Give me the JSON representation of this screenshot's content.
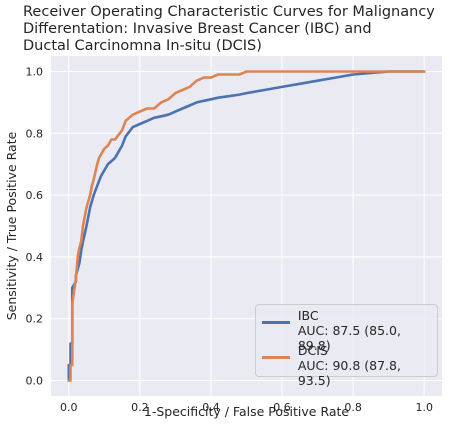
{
  "chart_data": {
    "type": "line",
    "title_lines": [
      "Receiver Operating Characteristic Curves for Malignancy",
      "Differentation: Invasive Breast Cancer (IBC) and",
      "Ductal Carcinomna In-situ (DCIS)"
    ],
    "xlabel": "1-Specificity / False Positive Rate",
    "ylabel": "Sensitivity / True Positive Rate",
    "xlim": [
      -0.05,
      1.05
    ],
    "ylim": [
      -0.05,
      1.05
    ],
    "xticks": [
      "0.0",
      "0.2",
      "0.4",
      "0.6",
      "0.8",
      "1.0"
    ],
    "yticks": [
      "0.0",
      "0.2",
      "0.4",
      "0.6",
      "0.8",
      "1.0"
    ],
    "grid": true,
    "legend_position": "lower-right",
    "series": [
      {
        "name": "IBC",
        "legend_label_line1": "IBC",
        "legend_label_line2": "AUC: 87.5 (85.0, 89.8)",
        "color": "#4c72b0",
        "x": [
          0.0,
          0.0,
          0.005,
          0.005,
          0.01,
          0.01,
          0.02,
          0.02,
          0.03,
          0.035,
          0.04,
          0.05,
          0.06,
          0.07,
          0.08,
          0.09,
          0.1,
          0.11,
          0.12,
          0.13,
          0.14,
          0.15,
          0.16,
          0.18,
          0.2,
          0.22,
          0.24,
          0.26,
          0.28,
          0.3,
          0.32,
          0.34,
          0.36,
          0.38,
          0.4,
          0.42,
          0.45,
          0.48,
          0.5,
          0.55,
          0.6,
          0.65,
          0.7,
          0.75,
          0.8,
          0.85,
          0.9,
          0.95,
          1.0
        ],
        "y": [
          0.0,
          0.05,
          0.05,
          0.12,
          0.12,
          0.3,
          0.32,
          0.34,
          0.38,
          0.42,
          0.45,
          0.5,
          0.56,
          0.6,
          0.63,
          0.66,
          0.68,
          0.7,
          0.71,
          0.72,
          0.74,
          0.76,
          0.79,
          0.82,
          0.83,
          0.84,
          0.85,
          0.855,
          0.86,
          0.87,
          0.88,
          0.89,
          0.9,
          0.905,
          0.91,
          0.915,
          0.92,
          0.925,
          0.93,
          0.94,
          0.95,
          0.96,
          0.97,
          0.98,
          0.99,
          0.995,
          1.0,
          1.0,
          1.0
        ]
      },
      {
        "name": "DCIS",
        "legend_label_line1": "DCIS",
        "legend_label_line2": "AUC: 90.8 (87.8, 93.5)",
        "color": "#dd8452",
        "x": [
          0.0,
          0.005,
          0.005,
          0.01,
          0.01,
          0.02,
          0.025,
          0.03,
          0.035,
          0.04,
          0.05,
          0.06,
          0.065,
          0.07,
          0.08,
          0.085,
          0.09,
          0.1,
          0.11,
          0.12,
          0.13,
          0.15,
          0.16,
          0.18,
          0.2,
          0.22,
          0.24,
          0.26,
          0.28,
          0.3,
          0.32,
          0.34,
          0.36,
          0.38,
          0.4,
          0.42,
          0.45,
          0.48,
          0.5,
          0.55,
          0.6,
          0.7,
          0.8,
          0.9,
          1.0
        ],
        "y": [
          0.0,
          0.0,
          0.05,
          0.05,
          0.25,
          0.33,
          0.4,
          0.43,
          0.45,
          0.5,
          0.56,
          0.6,
          0.63,
          0.65,
          0.7,
          0.72,
          0.73,
          0.75,
          0.76,
          0.78,
          0.78,
          0.81,
          0.84,
          0.86,
          0.87,
          0.88,
          0.88,
          0.9,
          0.91,
          0.93,
          0.94,
          0.95,
          0.97,
          0.98,
          0.98,
          0.99,
          0.99,
          0.99,
          1.0,
          1.0,
          1.0,
          1.0,
          1.0,
          1.0,
          1.0
        ]
      }
    ]
  }
}
